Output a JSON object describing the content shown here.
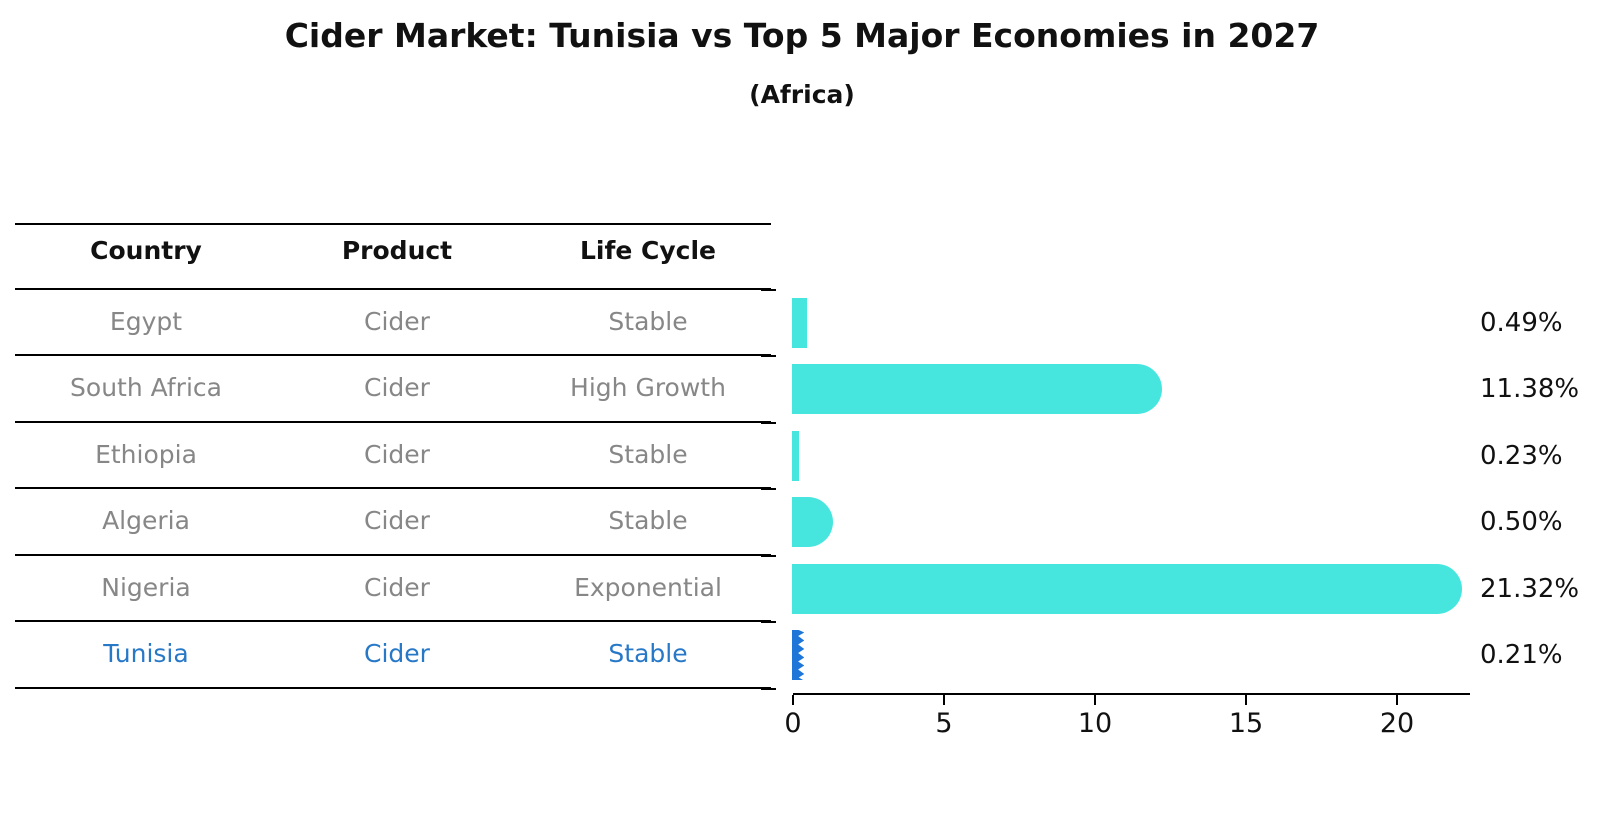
{
  "header": {
    "title": "Cider Market: Tunisia vs Top 5 Major Economies in 2027",
    "subtitle": "(Africa)"
  },
  "table": {
    "columns": [
      "Country",
      "Product",
      "Life Cycle"
    ],
    "rows": [
      {
        "country": "Egypt",
        "product": "Cider",
        "life_cycle": "Stable"
      },
      {
        "country": "South Africa",
        "product": "Cider",
        "life_cycle": "High Growth"
      },
      {
        "country": "Ethiopia",
        "product": "Cider",
        "life_cycle": "Stable"
      },
      {
        "country": "Algeria",
        "product": "Cider",
        "life_cycle": "Stable"
      },
      {
        "country": "Nigeria",
        "product": "Cider",
        "life_cycle": "Exponential"
      },
      {
        "country": "Tunisia",
        "product": "Cider",
        "life_cycle": "Stable"
      }
    ],
    "highlighted_row": "Tunisia"
  },
  "chart_data": {
    "type": "bar",
    "orientation": "horizontal",
    "title": "Cider Market: Tunisia vs Top 5 Major Economies in 2027",
    "subtitle": "(Africa)",
    "categories": [
      "Egypt",
      "South Africa",
      "Ethiopia",
      "Algeria",
      "Nigeria",
      "Tunisia"
    ],
    "values": [
      0.49,
      11.38,
      0.23,
      0.5,
      21.32,
      0.21
    ],
    "value_labels": [
      "0.49%",
      "11.38%",
      "0.23%",
      "0.50%",
      "21.32%",
      "0.21%"
    ],
    "unit": "%",
    "x_ticks": [
      0,
      5,
      10,
      15,
      20
    ],
    "x_tick_labels": [
      "0",
      "5",
      "10",
      "15",
      "20"
    ],
    "xlim": [
      0,
      22.4
    ],
    "xlabel": "",
    "ylabel": "",
    "grid": false,
    "legend": false,
    "colors": {
      "bar_default": "#46E6DF",
      "bar_highlight": "#1E76D9",
      "highlight_text": "#2878C8",
      "table_text": "#878787",
      "text": "#111111"
    }
  }
}
